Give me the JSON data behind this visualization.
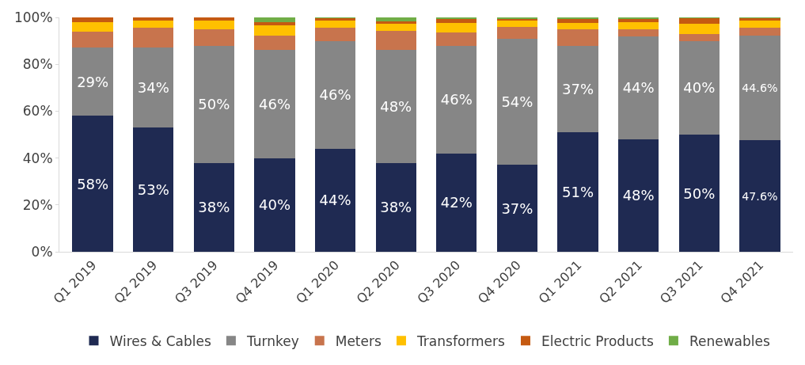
{
  "chart_data": {
    "type": "bar",
    "stacked": true,
    "categories": [
      "Q1 2019",
      "Q2 2019",
      "Q3 2019",
      "Q4 2019",
      "Q1 2020",
      "Q2 2020",
      "Q3 2020",
      "Q4 2020",
      "Q1 2021",
      "Q2 2021",
      "Q3 2021",
      "Q4 2021"
    ],
    "series": [
      {
        "name": "Wires & Cables",
        "color": "#1f2a52",
        "values": [
          58,
          53,
          38,
          40,
          44,
          38,
          42,
          37,
          51,
          48,
          50,
          47.6
        ],
        "value_labels": [
          "58%",
          "53%",
          "38%",
          "40%",
          "44%",
          "38%",
          "42%",
          "37%",
          "51%",
          "48%",
          "50%",
          "47.6%"
        ]
      },
      {
        "name": "Turnkey",
        "color": "#868686",
        "values": [
          29,
          34,
          50,
          46,
          46,
          48,
          46,
          54,
          37,
          44,
          40,
          44.6
        ],
        "value_labels": [
          "29%",
          "34%",
          "50%",
          "46%",
          "46%",
          "48%",
          "46%",
          "54%",
          "37%",
          "44%",
          "40%",
          "44.6%"
        ]
      },
      {
        "name": "Meters",
        "color": "#c8744d",
        "values": [
          7,
          8.5,
          6.8,
          6.1,
          5.6,
          8.3,
          5.7,
          4.9,
          6.8,
          2.9,
          3,
          3.4
        ]
      },
      {
        "name": "Transformers",
        "color": "#ffc000",
        "values": [
          4,
          3.3,
          3.9,
          4.4,
          3.2,
          3.1,
          4,
          2.9,
          3,
          3.2,
          4.4,
          3.1
        ]
      },
      {
        "name": "Electric Products",
        "color": "#c55a11",
        "values": [
          2,
          1.2,
          1.3,
          1.4,
          1,
          1,
          1.6,
          0.8,
          1.6,
          1.5,
          2.3,
          1
        ]
      },
      {
        "name": "Renewables",
        "color": "#70ad47",
        "values": [
          0,
          0,
          0,
          2.1,
          0.2,
          1.6,
          0.7,
          0.4,
          0.6,
          0.4,
          0.3,
          0.3
        ]
      }
    ],
    "ylim": [
      0,
      100
    ],
    "yticks": [
      {
        "value": 0,
        "label": "0%"
      },
      {
        "value": 20,
        "label": "20%"
      },
      {
        "value": 40,
        "label": "40%"
      },
      {
        "value": 60,
        "label": "60%"
      },
      {
        "value": 80,
        "label": "80%"
      },
      {
        "value": 100,
        "label": "100%"
      }
    ],
    "legend": "bottom"
  }
}
